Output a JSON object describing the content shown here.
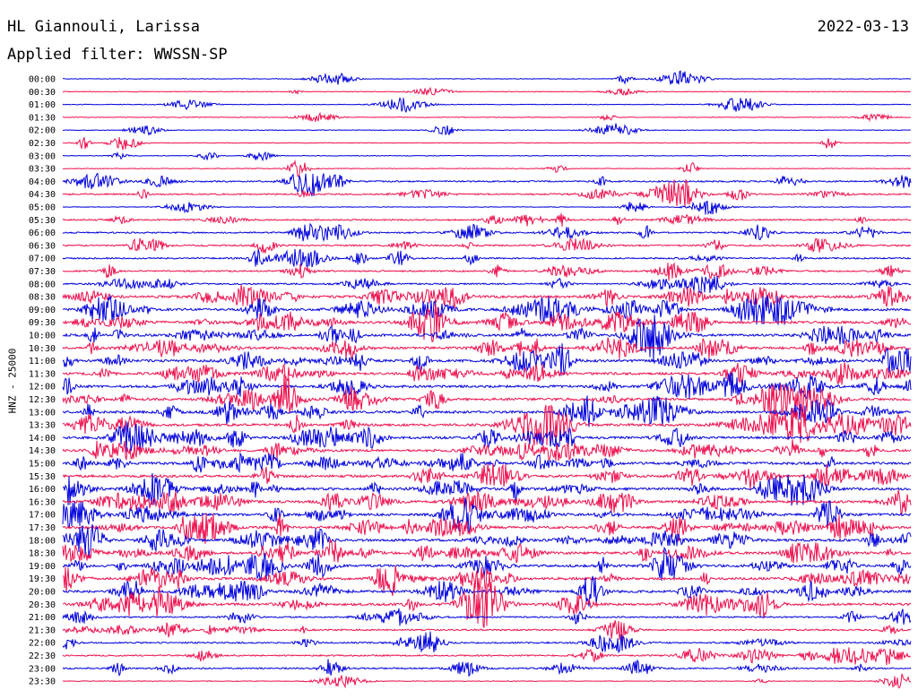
{
  "header": {
    "station": "HL Giannouli, Larissa",
    "date": "2022-03-13",
    "filter": "Applied filter: WWSSN-SP"
  },
  "chart_data": {
    "type": "line",
    "title": "HL Giannouli, Larissa",
    "subtitle": "Applied filter: WWSSN-SP",
    "date": "2022-03-13",
    "ylabel": "HNZ - 25000",
    "xlabel": "",
    "categories": [
      "00:00",
      "00:30",
      "01:00",
      "01:30",
      "02:00",
      "02:30",
      "03:00",
      "03:30",
      "04:00",
      "04:30",
      "05:00",
      "05:30",
      "06:00",
      "06:30",
      "07:00",
      "07:30",
      "08:00",
      "08:30",
      "09:00",
      "09:30",
      "10:00",
      "10:30",
      "11:00",
      "11:30",
      "12:00",
      "12:30",
      "13:00",
      "13:30",
      "14:00",
      "14:30",
      "15:00",
      "15:30",
      "16:00",
      "16:30",
      "17:00",
      "17:30",
      "18:00",
      "18:30",
      "19:00",
      "19:30",
      "20:00",
      "20:30",
      "21:00",
      "21:30",
      "22:00",
      "22:30",
      "23:00",
      "23:30"
    ],
    "activity": [
      1,
      1,
      1,
      1,
      1,
      1,
      1,
      1,
      2,
      2,
      1,
      2,
      2,
      2,
      2,
      2,
      2,
      3,
      3,
      3,
      3,
      3,
      3,
      3,
      3,
      3,
      3,
      3,
      3,
      3,
      3,
      3,
      3,
      3,
      3,
      3,
      3,
      3,
      3,
      3,
      3,
      3,
      2,
      2,
      2,
      2,
      2,
      1
    ],
    "colors": [
      "#0000dd",
      "#ee0f4d"
    ],
    "grid": false,
    "legend": "none"
  }
}
